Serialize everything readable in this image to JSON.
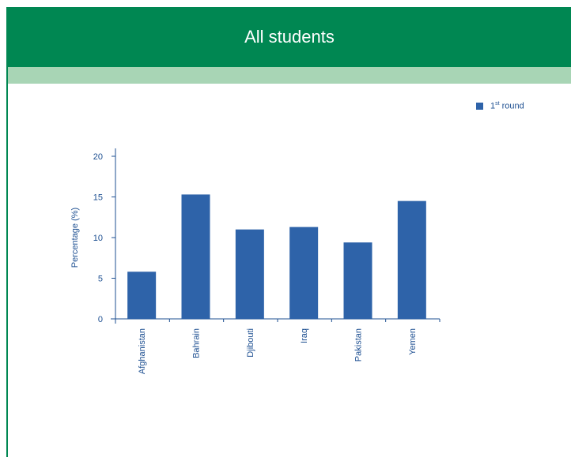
{
  "header": {
    "title": "All students"
  },
  "colors": {
    "header": "#008752",
    "subbar": "#a8d5b5",
    "bar": "#2e63a9",
    "text": "#1d4f91"
  },
  "legend": {
    "label": "1",
    "label_sup": "st",
    "label_rest": " round"
  },
  "chart_data": {
    "type": "bar",
    "categories": [
      "Afghanistan",
      "Bahrain",
      "Djibouti",
      "Iraq",
      "Pakistan",
      "Yemen"
    ],
    "series": [
      {
        "name": "1st round",
        "values": [
          5.8,
          15.3,
          11.0,
          11.3,
          9.4,
          14.5
        ]
      }
    ],
    "ylabel": "Percentage (%)",
    "ylim": [
      0,
      20
    ],
    "yticks": [
      0,
      5,
      10,
      15,
      20
    ],
    "legend_position": "top-right",
    "grid": false
  }
}
